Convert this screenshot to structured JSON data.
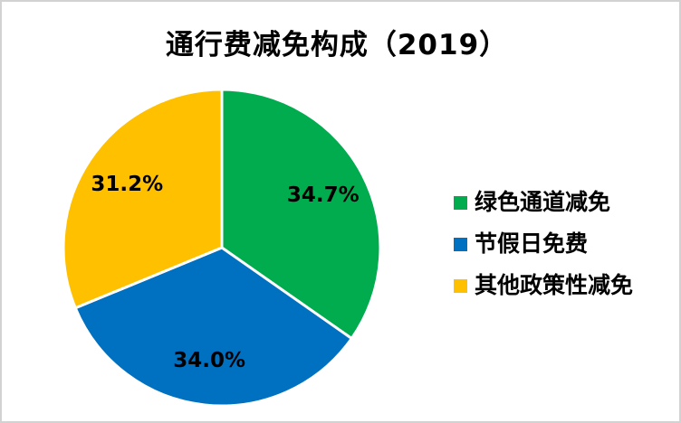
{
  "title": "通行费减免构成（2019）",
  "chart_data": {
    "type": "pie",
    "title": "通行费减免构成（2019）",
    "series": [
      {
        "name": "绿色通道减免",
        "value": 34.7,
        "label": "34.7%",
        "color": "#00AC4E"
      },
      {
        "name": "节假日免费",
        "value": 34.0,
        "label": "34.0%",
        "color": "#0070C0"
      },
      {
        "name": "其他政策性减免",
        "value": 31.2,
        "label": "31.2%",
        "color": "#FFC000"
      }
    ],
    "start_angle_deg": -90,
    "direction": "clockwise",
    "legend_position": "right",
    "slice_border_color": "#FFFFFF",
    "label_color": "#000000"
  }
}
